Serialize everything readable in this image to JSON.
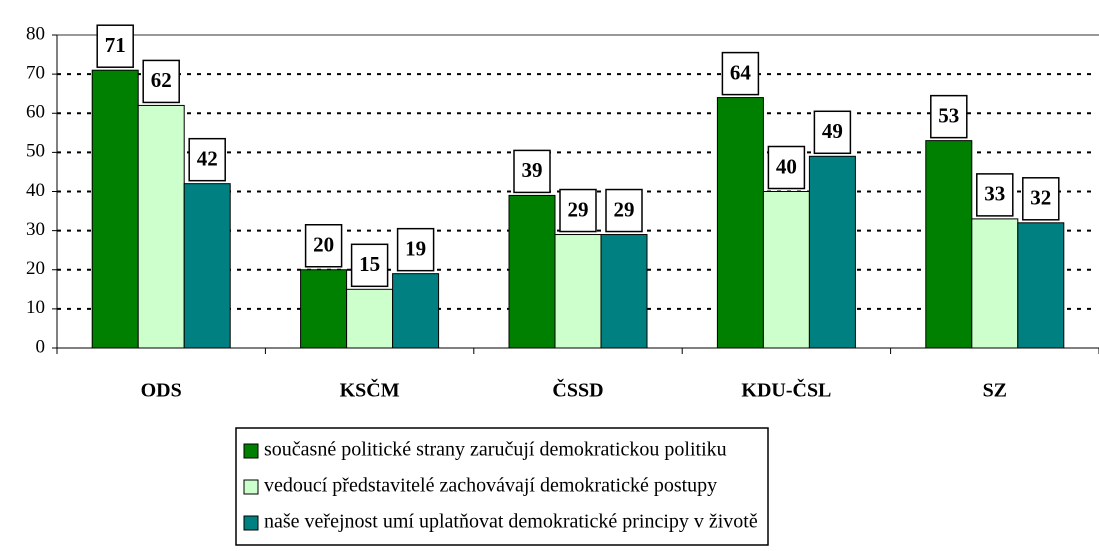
{
  "chart_data": {
    "type": "bar",
    "categories": [
      "ODS",
      "KSČM",
      "ČSSD",
      "KDU-ČSL",
      "SZ"
    ],
    "series": [
      {
        "name": "současné politické strany zaručují demokratickou politiku",
        "color": "#008000",
        "values": [
          71,
          20,
          39,
          64,
          53
        ]
      },
      {
        "name": "vedoucí představitelé zachovávají demokratické postupy",
        "color": "#ccffcc",
        "values": [
          62,
          15,
          29,
          40,
          33
        ]
      },
      {
        "name": "naše veřejnost umí uplatňovat demokratické principy v životě",
        "color": "#008080",
        "values": [
          42,
          19,
          29,
          49,
          32
        ]
      }
    ],
    "ylim": [
      0,
      80
    ],
    "yticks": [
      0,
      10,
      20,
      30,
      40,
      50,
      60,
      70,
      80
    ],
    "grid": true
  }
}
